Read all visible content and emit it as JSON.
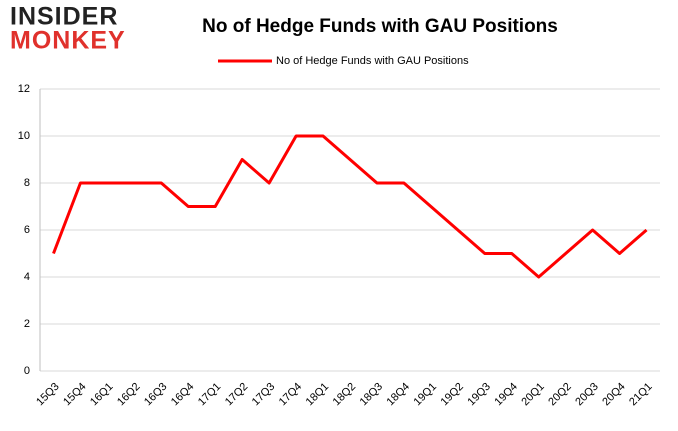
{
  "logo": {
    "top": "INSIDER",
    "bottom": "MONKEY"
  },
  "chart_data": {
    "type": "line",
    "title": "No of Hedge Funds with GAU Positions",
    "categories": [
      "15Q3",
      "15Q4",
      "16Q1",
      "16Q2",
      "16Q3",
      "16Q4",
      "17Q1",
      "17Q2",
      "17Q3",
      "17Q4",
      "18Q1",
      "18Q2",
      "18Q3",
      "18Q4",
      "19Q1",
      "19Q2",
      "19Q3",
      "19Q4",
      "20Q1",
      "20Q2",
      "20Q3",
      "20Q4",
      "21Q1"
    ],
    "series": [
      {
        "name": "No of Hedge Funds with GAU Positions",
        "color": "#ff0000",
        "values": [
          5,
          8,
          8,
          8,
          8,
          7,
          7,
          9,
          8,
          10,
          10,
          9,
          8,
          8,
          7,
          6,
          5,
          5,
          4,
          5,
          6,
          5,
          6
        ]
      }
    ],
    "ylim": [
      0,
      12
    ],
    "yticks": [
      0,
      2,
      4,
      6,
      8,
      10,
      12
    ],
    "grid": true,
    "legend": "top"
  }
}
